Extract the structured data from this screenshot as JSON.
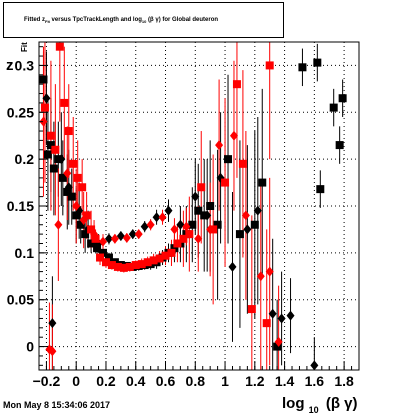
{
  "title_parts": {
    "pre": "Fitted  z",
    "sub1": "Fit",
    "mid": "  versus  TpcTrackLength and log",
    "sub2": "10",
    "post": " (β γ) for Global deuteron"
  },
  "ylabel_main": "z",
  "ylabel_sub": "Fit",
  "xlabel_main": "log",
  "xlabel_sub": "10",
  "xlabel_post": "(β γ)",
  "datestamp": "Mon May  8 15:34:06 2017",
  "colors": {
    "series_black": "#000000",
    "series_red": "#ff0000",
    "grid": "#000000"
  },
  "chart_data": {
    "type": "scatter",
    "xlim": [
      -0.25,
      1.9
    ],
    "ylim": [
      -0.025,
      0.325
    ],
    "grid": true,
    "x_ticks": [
      -0.2,
      0,
      0.2,
      0.4,
      0.6,
      0.8,
      1,
      1.2,
      1.4,
      1.6,
      1.8
    ],
    "x_tick_labels": [
      "−0.2",
      "0",
      "0.2",
      "0.4",
      "0.6",
      "0.8",
      "1",
      "1.2",
      "1.4",
      "1.6",
      "1.8"
    ],
    "y_ticks": [
      0,
      0.05,
      0.1,
      0.15,
      0.2,
      0.25,
      0.3
    ],
    "y_tick_labels": [
      "0",
      "0.05",
      "0.1",
      "0.15",
      "0.2",
      "0.25",
      "0.3"
    ],
    "series": [
      {
        "color": "#000000",
        "marker": "square",
        "points": [
          {
            "x": -0.22,
            "y": 0.285,
            "err": 0.03
          },
          {
            "x": -0.19,
            "y": 0.205,
            "err": 0.06
          },
          {
            "x": -0.17,
            "y": 0.215,
            "err": 0.05
          },
          {
            "x": -0.15,
            "y": 0.19,
            "err": 0.05
          },
          {
            "x": -0.12,
            "y": 0.2,
            "err": 0.04
          },
          {
            "x": -0.09,
            "y": 0.18,
            "err": 0.04
          },
          {
            "x": -0.06,
            "y": 0.165,
            "err": 0.04
          },
          {
            "x": -0.03,
            "y": 0.16,
            "err": 0.03
          },
          {
            "x": 0.0,
            "y": 0.14,
            "err": 0.03
          },
          {
            "x": 0.03,
            "y": 0.13,
            "err": 0.02
          },
          {
            "x": 0.06,
            "y": 0.12,
            "err": 0.02
          },
          {
            "x": 0.1,
            "y": 0.11,
            "err": 0.01
          },
          {
            "x": 0.14,
            "y": 0.105,
            "err": 0.008
          },
          {
            "x": 0.18,
            "y": 0.1,
            "err": 0.006
          },
          {
            "x": 0.22,
            "y": 0.095,
            "err": 0.005
          },
          {
            "x": 0.26,
            "y": 0.09,
            "err": 0.004
          },
          {
            "x": 0.3,
            "y": 0.087,
            "err": 0.004
          },
          {
            "x": 0.34,
            "y": 0.086,
            "err": 0.004
          },
          {
            "x": 0.38,
            "y": 0.085,
            "err": 0.004
          },
          {
            "x": 0.42,
            "y": 0.086,
            "err": 0.005
          },
          {
            "x": 0.46,
            "y": 0.087,
            "err": 0.005
          },
          {
            "x": 0.5,
            "y": 0.088,
            "err": 0.006
          },
          {
            "x": 0.54,
            "y": 0.09,
            "err": 0.007
          },
          {
            "x": 0.58,
            "y": 0.095,
            "err": 0.008
          },
          {
            "x": 0.62,
            "y": 0.1,
            "err": 0.01
          },
          {
            "x": 0.66,
            "y": 0.105,
            "err": 0.015
          },
          {
            "x": 0.7,
            "y": 0.11,
            "err": 0.02
          },
          {
            "x": 0.74,
            "y": 0.12,
            "err": 0.03
          },
          {
            "x": 0.78,
            "y": 0.13,
            "err": 0.04
          },
          {
            "x": 0.82,
            "y": 0.145,
            "err": 0.05
          },
          {
            "x": 0.86,
            "y": 0.14,
            "err": 0.06
          },
          {
            "x": 0.9,
            "y": 0.15,
            "err": 0.07
          },
          {
            "x": 0.95,
            "y": 0.13,
            "err": 0.08
          },
          {
            "x": 1.02,
            "y": 0.2,
            "err": 0.09
          },
          {
            "x": 1.1,
            "y": 0.12,
            "err": 0.1
          },
          {
            "x": 1.2,
            "y": 0.13,
            "err": 0.1
          },
          {
            "x": 1.25,
            "y": 0.175,
            "err": 0.1
          },
          {
            "x": 1.35,
            "y": 0.0,
            "err": 0.05
          },
          {
            "x": 1.52,
            "y": 0.298,
            "err": 0.02
          },
          {
            "x": 1.62,
            "y": 0.303,
            "err": 0.02
          },
          {
            "x": 1.64,
            "y": 0.168,
            "err": 0.02
          },
          {
            "x": 1.73,
            "y": 0.255,
            "err": 0.02
          },
          {
            "x": 1.77,
            "y": 0.215,
            "err": 0.02
          },
          {
            "x": 1.79,
            "y": 0.265,
            "err": 0.02
          }
        ]
      },
      {
        "color": "#000000",
        "marker": "diamond",
        "points": [
          {
            "x": -0.2,
            "y": 0.265,
            "err": 0.05
          },
          {
            "x": -0.16,
            "y": 0.025,
            "err": 0.05
          },
          {
            "x": -0.1,
            "y": 0.2,
            "err": 0.05
          },
          {
            "x": -0.05,
            "y": 0.17,
            "err": 0.04
          },
          {
            "x": 0.02,
            "y": 0.145,
            "err": 0.03
          },
          {
            "x": 0.08,
            "y": 0.125,
            "err": 0.02
          },
          {
            "x": 0.15,
            "y": 0.11,
            "err": 0.01
          },
          {
            "x": 0.22,
            "y": 0.115,
            "err": 0.006
          },
          {
            "x": 0.3,
            "y": 0.118,
            "err": 0.005
          },
          {
            "x": 0.38,
            "y": 0.12,
            "err": 0.005
          },
          {
            "x": 0.46,
            "y": 0.128,
            "err": 0.006
          },
          {
            "x": 0.54,
            "y": 0.138,
            "err": 0.008
          },
          {
            "x": 0.62,
            "y": 0.145,
            "err": 0.012
          },
          {
            "x": 0.7,
            "y": 0.13,
            "err": 0.02
          },
          {
            "x": 0.8,
            "y": 0.16,
            "err": 0.04
          },
          {
            "x": 0.88,
            "y": 0.14,
            "err": 0.06
          },
          {
            "x": 0.97,
            "y": 0.18,
            "err": 0.07
          },
          {
            "x": 1.05,
            "y": 0.085,
            "err": 0.08
          },
          {
            "x": 1.15,
            "y": 0.125,
            "err": 0.09
          },
          {
            "x": 1.22,
            "y": 0.145,
            "err": 0.1
          },
          {
            "x": 1.32,
            "y": 0.035,
            "err": 0.08
          },
          {
            "x": 1.38,
            "y": 0.03,
            "err": 0.05
          },
          {
            "x": 1.44,
            "y": 0.033,
            "err": 0.04
          },
          {
            "x": 1.6,
            "y": -0.02,
            "err": 0.03
          }
        ]
      },
      {
        "color": "#ff0000",
        "marker": "square",
        "points": [
          {
            "x": -0.21,
            "y": 0.255,
            "err": 0.08
          },
          {
            "x": -0.17,
            "y": 0.225,
            "err": 0.08
          },
          {
            "x": -0.14,
            "y": 0.21,
            "err": 0.07
          },
          {
            "x": -0.11,
            "y": 0.32,
            "err": 0.08
          },
          {
            "x": -0.08,
            "y": 0.26,
            "err": 0.06
          },
          {
            "x": -0.05,
            "y": 0.23,
            "err": 0.05
          },
          {
            "x": -0.02,
            "y": 0.195,
            "err": 0.05
          },
          {
            "x": 0.01,
            "y": 0.18,
            "err": 0.04
          },
          {
            "x": 0.04,
            "y": 0.17,
            "err": 0.03
          },
          {
            "x": 0.07,
            "y": 0.14,
            "err": 0.025
          },
          {
            "x": 0.1,
            "y": 0.125,
            "err": 0.02
          },
          {
            "x": 0.13,
            "y": 0.115,
            "err": 0.01
          },
          {
            "x": 0.16,
            "y": 0.095,
            "err": 0.008
          },
          {
            "x": 0.2,
            "y": 0.09,
            "err": 0.006
          },
          {
            "x": 0.24,
            "y": 0.087,
            "err": 0.005
          },
          {
            "x": 0.28,
            "y": 0.085,
            "err": 0.005
          },
          {
            "x": 0.32,
            "y": 0.084,
            "err": 0.005
          },
          {
            "x": 0.36,
            "y": 0.085,
            "err": 0.005
          },
          {
            "x": 0.4,
            "y": 0.087,
            "err": 0.005
          },
          {
            "x": 0.44,
            "y": 0.088,
            "err": 0.006
          },
          {
            "x": 0.48,
            "y": 0.09,
            "err": 0.006
          },
          {
            "x": 0.52,
            "y": 0.092,
            "err": 0.007
          },
          {
            "x": 0.56,
            "y": 0.094,
            "err": 0.008
          },
          {
            "x": 0.6,
            "y": 0.097,
            "err": 0.01
          },
          {
            "x": 0.64,
            "y": 0.1,
            "err": 0.014
          },
          {
            "x": 0.68,
            "y": 0.11,
            "err": 0.02
          },
          {
            "x": 0.72,
            "y": 0.115,
            "err": 0.03
          },
          {
            "x": 0.76,
            "y": 0.12,
            "err": 0.04
          },
          {
            "x": 0.84,
            "y": 0.17,
            "err": 0.06
          },
          {
            "x": 0.92,
            "y": 0.125,
            "err": 0.08
          },
          {
            "x": 1.0,
            "y": 0.175,
            "err": 0.09
          },
          {
            "x": 1.08,
            "y": 0.28,
            "err": 0.1
          },
          {
            "x": 1.12,
            "y": 0.195,
            "err": 0.1
          },
          {
            "x": 1.18,
            "y": 0.04,
            "err": 0.1
          },
          {
            "x": 1.28,
            "y": 0.025,
            "err": 0.1
          },
          {
            "x": 1.3,
            "y": 0.3,
            "err": 0.1
          }
        ]
      },
      {
        "color": "#ff0000",
        "marker": "diamond",
        "points": [
          {
            "x": -0.22,
            "y": 0.24,
            "err": 0.08
          },
          {
            "x": -0.18,
            "y": -0.003,
            "err": 0.05
          },
          {
            "x": -0.16,
            "y": -0.005,
            "err": 0.05
          },
          {
            "x": -0.12,
            "y": 0.13,
            "err": 0.06
          },
          {
            "x": -0.06,
            "y": 0.185,
            "err": 0.05
          },
          {
            "x": 0.0,
            "y": 0.15,
            "err": 0.04
          },
          {
            "x": 0.05,
            "y": 0.135,
            "err": 0.03
          },
          {
            "x": 0.12,
            "y": 0.12,
            "err": 0.015
          },
          {
            "x": 0.18,
            "y": 0.112,
            "err": 0.008
          },
          {
            "x": 0.26,
            "y": 0.115,
            "err": 0.005
          },
          {
            "x": 0.34,
            "y": 0.116,
            "err": 0.005
          },
          {
            "x": 0.42,
            "y": 0.12,
            "err": 0.005
          },
          {
            "x": 0.5,
            "y": 0.13,
            "err": 0.006
          },
          {
            "x": 0.58,
            "y": 0.138,
            "err": 0.008
          },
          {
            "x": 0.66,
            "y": 0.125,
            "err": 0.012
          },
          {
            "x": 0.74,
            "y": 0.128,
            "err": 0.02
          },
          {
            "x": 0.82,
            "y": 0.115,
            "err": 0.035
          },
          {
            "x": 0.9,
            "y": 0.125,
            "err": 0.05
          },
          {
            "x": 0.96,
            "y": 0.215,
            "err": 0.07
          },
          {
            "x": 1.06,
            "y": 0.225,
            "err": 0.08
          },
          {
            "x": 1.14,
            "y": 0.14,
            "err": 0.09
          },
          {
            "x": 1.24,
            "y": 0.075,
            "err": 0.1
          },
          {
            "x": 1.3,
            "y": 0.08,
            "err": 0.1
          },
          {
            "x": 1.36,
            "y": 0.005,
            "err": 0.06
          }
        ]
      }
    ]
  }
}
